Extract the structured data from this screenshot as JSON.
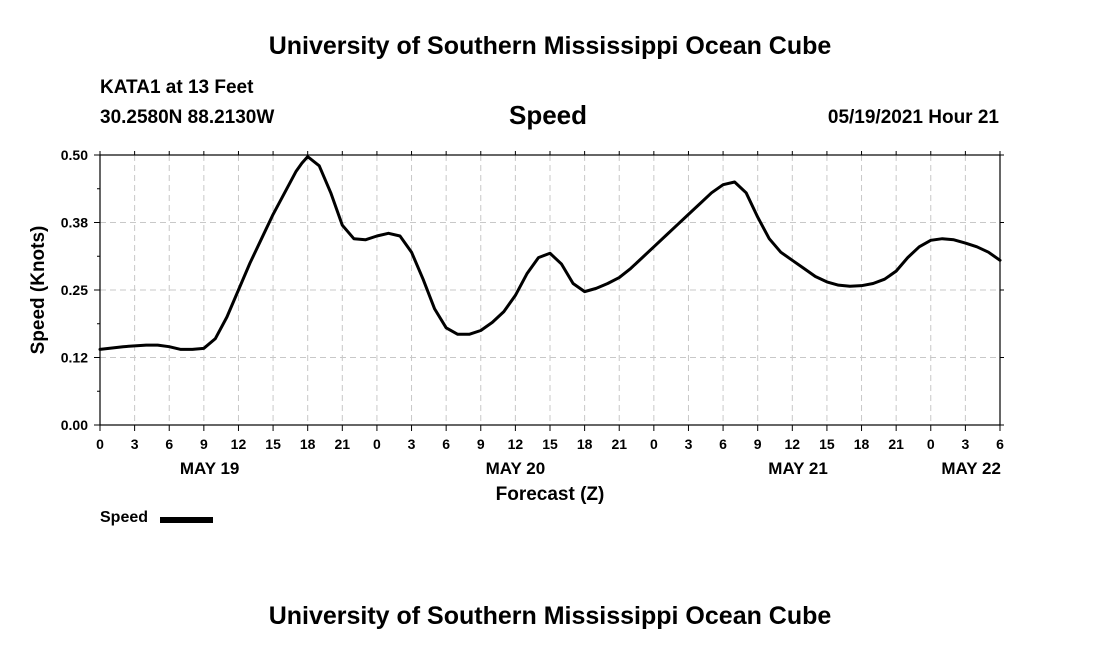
{
  "header": {
    "title": "University of Southern Mississippi Ocean Cube",
    "footer_title": "University of Southern Mississippi Ocean Cube",
    "station": "KATA1 at 13 Feet",
    "location": "30.2580N  88.2130W",
    "subtitle": "Speed",
    "timestamp": "05/19/2021 Hour 21"
  },
  "legend": {
    "label": "Speed"
  },
  "chart_data": {
    "type": "line",
    "title": "Speed",
    "xlabel": "Forecast (Z)",
    "ylabel": "Speed (Knots)",
    "xlim": [
      0,
      78
    ],
    "ylim": [
      0,
      0.5
    ],
    "yticks": [
      0.0,
      0.125,
      0.25,
      0.375,
      0.5
    ],
    "ytick_labels": [
      "0.00",
      "0.12",
      "0.25",
      "0.38",
      "0.50"
    ],
    "xticks": [
      0,
      3,
      6,
      9,
      12,
      15,
      18,
      21,
      24,
      27,
      30,
      33,
      36,
      39,
      42,
      45,
      48,
      51,
      54,
      57,
      60,
      63,
      66,
      69,
      72,
      75,
      78
    ],
    "xtick_labels": [
      "0",
      "3",
      "6",
      "9",
      "12",
      "15",
      "18",
      "21",
      "0",
      "3",
      "6",
      "9",
      "12",
      "15",
      "18",
      "21",
      "0",
      "3",
      "6",
      "9",
      "12",
      "15",
      "18",
      "21",
      "0",
      "3",
      "6"
    ],
    "date_labels": [
      {
        "label": "MAY 19",
        "x": 9.5
      },
      {
        "label": "MAY 20",
        "x": 36
      },
      {
        "label": "MAY 21",
        "x": 60.5
      },
      {
        "label": "MAY 22",
        "x": 75.5
      }
    ],
    "grid": true,
    "legend_position": "bottom-left",
    "series": [
      {
        "name": "Speed",
        "color": "#000000",
        "x": [
          0,
          2,
          4,
          5,
          6,
          7,
          8,
          9,
          10,
          11,
          12,
          13,
          14,
          15,
          16,
          17,
          17.5,
          18,
          19,
          20,
          21,
          22,
          23,
          24,
          25,
          26,
          27,
          28,
          29,
          30,
          31,
          32,
          33,
          34,
          35,
          36,
          37,
          38,
          39,
          40,
          41,
          42,
          43,
          44,
          45,
          46,
          47,
          48,
          49,
          50,
          51,
          52,
          53,
          54,
          55,
          56,
          57,
          58,
          59,
          60,
          61,
          62,
          63,
          64,
          65,
          66,
          67,
          68,
          69,
          70,
          71,
          72,
          73,
          74,
          75,
          76,
          77,
          78
        ],
        "values": [
          0.14,
          0.145,
          0.148,
          0.148,
          0.145,
          0.14,
          0.14,
          0.142,
          0.16,
          0.2,
          0.25,
          0.3,
          0.345,
          0.39,
          0.43,
          0.47,
          0.485,
          0.497,
          0.48,
          0.43,
          0.37,
          0.345,
          0.343,
          0.35,
          0.355,
          0.35,
          0.32,
          0.27,
          0.215,
          0.18,
          0.168,
          0.168,
          0.175,
          0.19,
          0.21,
          0.24,
          0.28,
          0.31,
          0.318,
          0.298,
          0.262,
          0.247,
          0.253,
          0.262,
          0.273,
          0.29,
          0.31,
          0.33,
          0.35,
          0.37,
          0.39,
          0.41,
          0.43,
          0.445,
          0.45,
          0.43,
          0.385,
          0.345,
          0.32,
          0.305,
          0.29,
          0.275,
          0.265,
          0.259,
          0.257,
          0.258,
          0.262,
          0.27,
          0.285,
          0.31,
          0.33,
          0.342,
          0.345,
          0.343,
          0.337,
          0.33,
          0.32,
          0.305
        ]
      }
    ]
  }
}
